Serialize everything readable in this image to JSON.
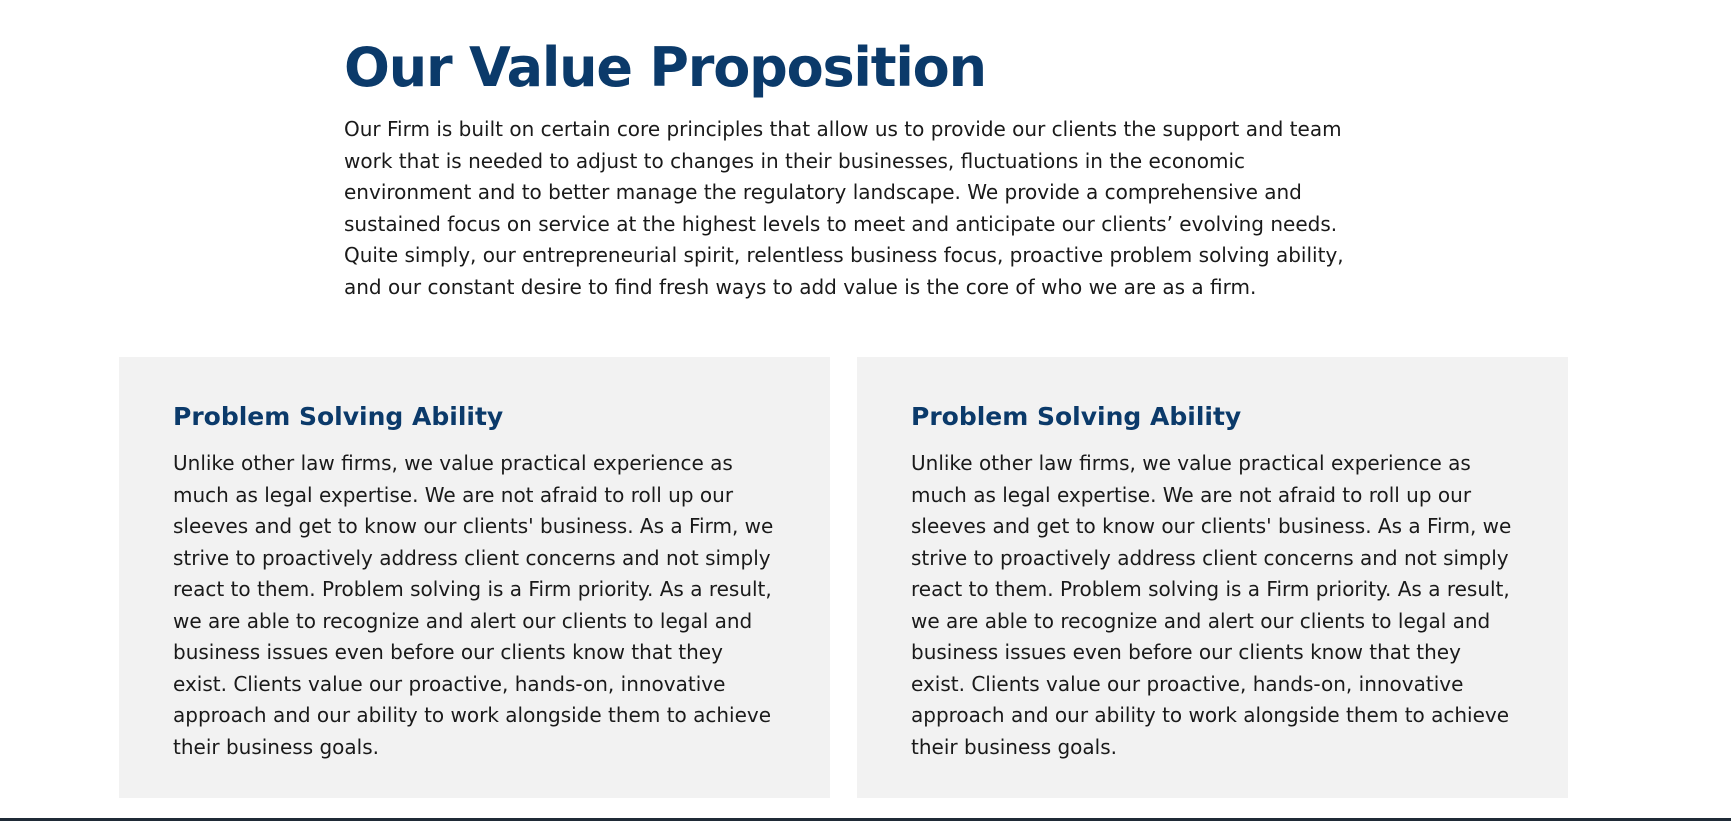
{
  "header": {
    "title": "Our Value Proposition",
    "intro": "Our Firm is built on certain core principles that allow us to provide our clients the support and team work that is needed to adjust to changes in their businesses, fluctuations in the economic environment and to better manage the regulatory landscape. We provide a comprehensive and sustained focus on service at the highest levels to meet and anticipate our clients’ evolving needs. Quite simply, our entrepreneurial spirit, relentless business focus, proactive problem solving ability, and our constant desire to find fresh ways to add value is the core of who we are as a firm."
  },
  "cards": [
    {
      "title": "Problem Solving Ability",
      "body": "Unlike other law firms, we value practical experience as much as legal expertise. We are not afraid to roll up our sleeves and get to know our clients' business. As a Firm, we strive to proactively address client concerns and not simply react to them. Problem solving is a Firm priority. As a result, we are able to recognize and alert our clients to legal and business issues even before our clients know that they exist. Clients value our proactive, hands-on, innovative approach and our ability to work alongside them to achieve their business goals."
    },
    {
      "title": "Problem Solving Ability",
      "body": "Unlike other law firms, we value practical experience as much as legal expertise. We are not afraid to roll up our sleeves and get to know our clients' business. As a Firm, we strive to proactively address client concerns and not simply react to them. Problem solving is a Firm priority. As a result, we are able to recognize and alert our clients to legal and business issues even before our clients know that they exist. Clients value our proactive, hands-on, innovative approach and our ability to work alongside them to achieve their business goals."
    }
  ],
  "colors": {
    "heading": "#0b3a6a",
    "text": "#1a1a1a",
    "card_background": "#f2f2f2"
  }
}
